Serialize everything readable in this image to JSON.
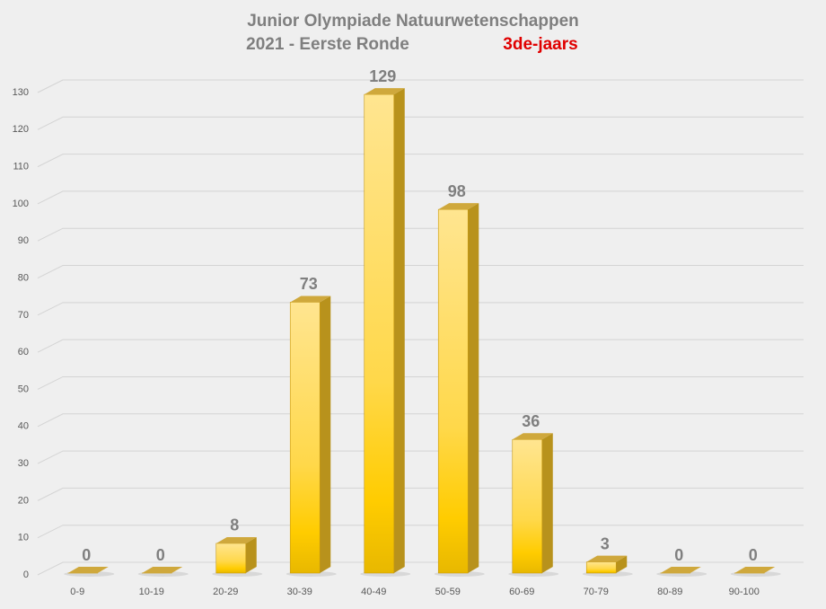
{
  "chart_data": {
    "type": "bar3d",
    "title": "Junior  Olympiade  Natuurwetenschappen",
    "subtitle": "2021 - Eerste Ronde",
    "annotation": "3de-jaars",
    "categories": [
      "0-9",
      "10-19",
      "20-29",
      "30-39",
      "40-49",
      "50-59",
      "60-69",
      "70-79",
      "80-89",
      "90-100"
    ],
    "values": [
      0,
      0,
      8,
      73,
      129,
      98,
      36,
      3,
      0,
      0
    ],
    "ylim": [
      0,
      130
    ],
    "yticks": [
      0,
      10,
      20,
      30,
      40,
      50,
      60,
      70,
      80,
      90,
      100,
      110,
      120,
      130
    ],
    "grid": true,
    "color": "#ffd000"
  }
}
